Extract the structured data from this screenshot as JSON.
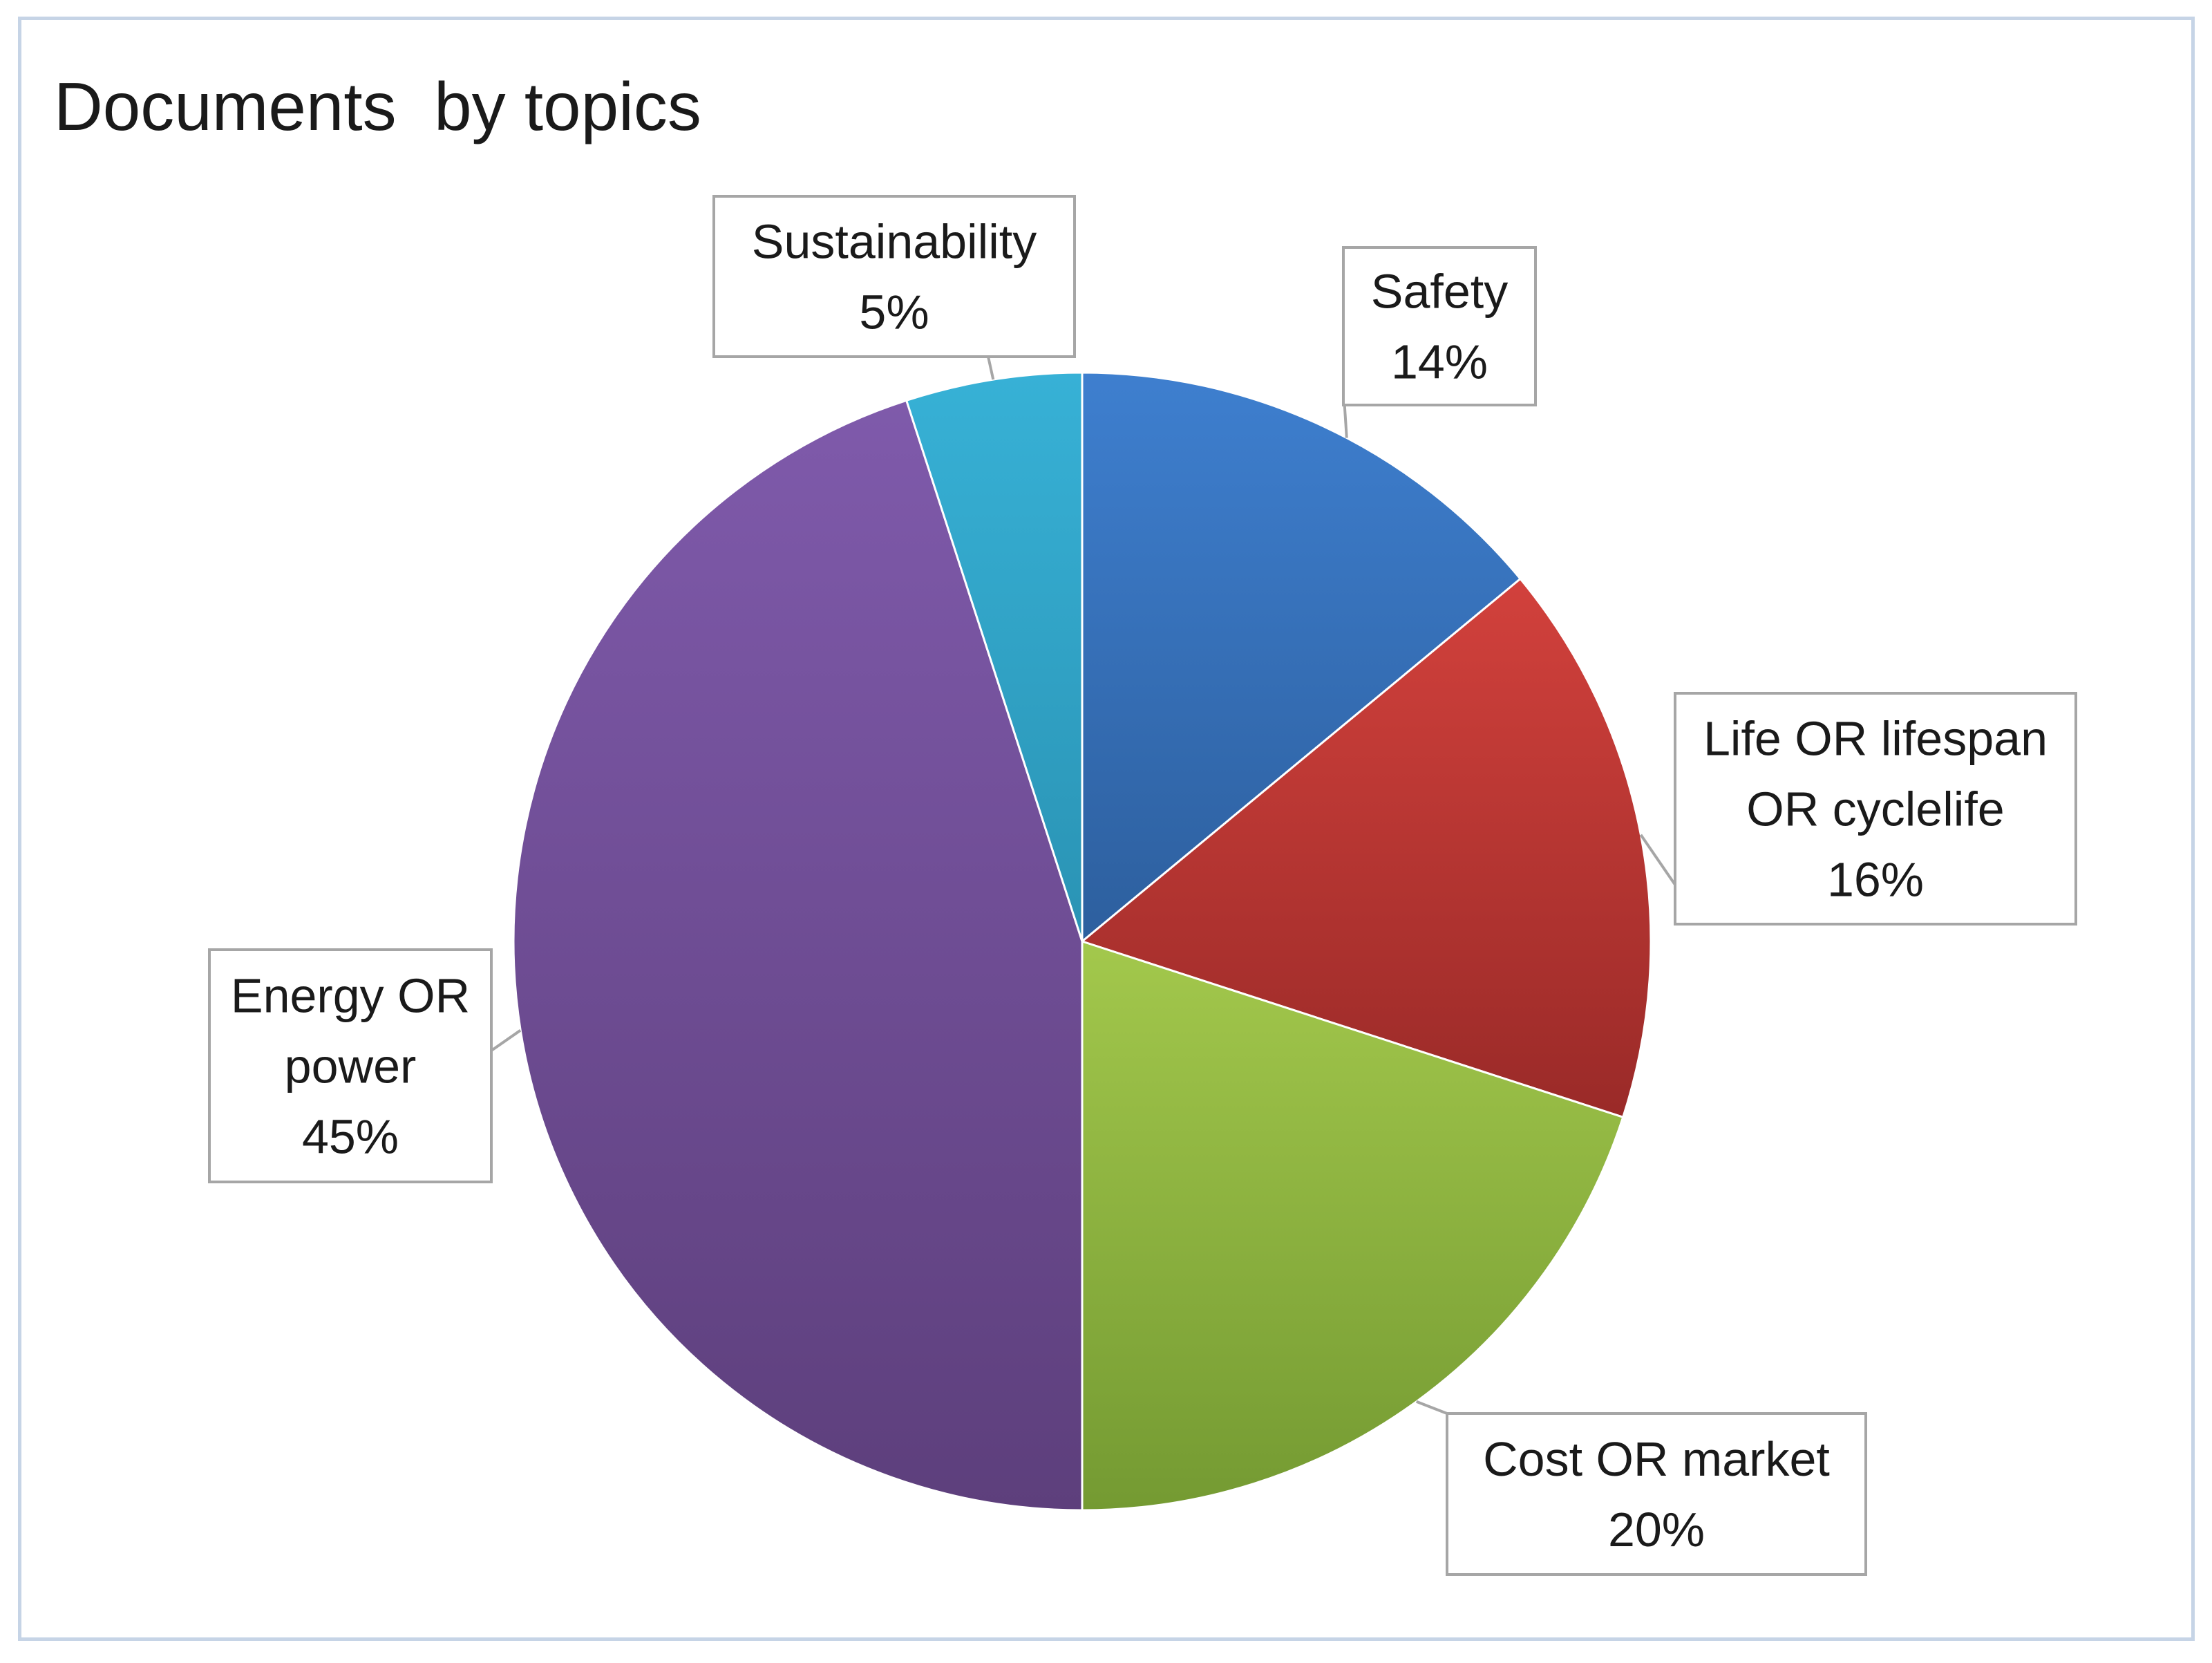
{
  "chart_data": {
    "type": "pie",
    "title": "Documents  by topics",
    "slices": [
      {
        "label": "Safety",
        "label_lines": [
          "Safety"
        ],
        "percent_label": "14%",
        "value": 14,
        "color_top": "#3e7fcf",
        "color_bottom": "#2d5f9e"
      },
      {
        "label": "Life OR lifespan OR cyclelife",
        "label_lines": [
          "Life OR lifespan",
          "OR cyclelife"
        ],
        "percent_label": "16%",
        "value": 16,
        "color_top": "#d2413c",
        "color_bottom": "#9a2a28"
      },
      {
        "label": "Cost OR market",
        "label_lines": [
          "Cost OR market"
        ],
        "percent_label": "20%",
        "value": 20,
        "color_top": "#a3c84c",
        "color_bottom": "#749a32"
      },
      {
        "label": "Energy OR power",
        "label_lines": [
          "Energy OR",
          "power"
        ],
        "percent_label": "45%",
        "value": 45,
        "color_top": "#7f5aab",
        "color_bottom": "#5d3f7c"
      },
      {
        "label": "Sustainability",
        "label_lines": [
          "Sustainability"
        ],
        "percent_label": "5%",
        "value": 5,
        "color_top": "#37b1d6",
        "color_bottom": "#2a93b4"
      }
    ],
    "start_angle": "12 o'clock",
    "direction": "clockwise",
    "legend": "none",
    "data_labels": "callouts"
  }
}
